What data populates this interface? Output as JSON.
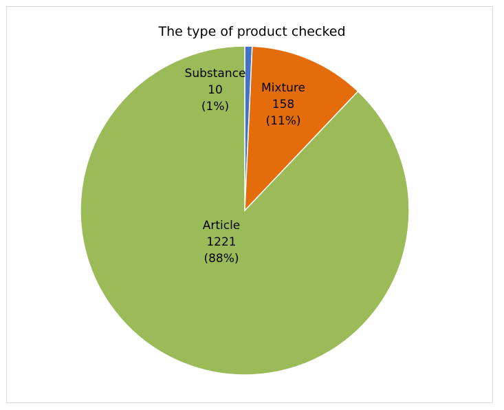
{
  "chart_data": {
    "type": "pie",
    "title": "The type of product checked",
    "slices": [
      {
        "name": "Substance",
        "value": 10,
        "percent_label": "(1%)",
        "value_label": "10",
        "color": "#4472c4"
      },
      {
        "name": "Mixture",
        "value": 158,
        "percent_label": "(11%)",
        "value_label": "158",
        "color": "#e46c0a"
      },
      {
        "name": "Article",
        "value": 1221,
        "percent_label": "(88%)",
        "value_label": "1221",
        "color": "#9bbb59"
      }
    ],
    "start": "12 o'clock",
    "direction": "clockwise",
    "legend": "none"
  }
}
